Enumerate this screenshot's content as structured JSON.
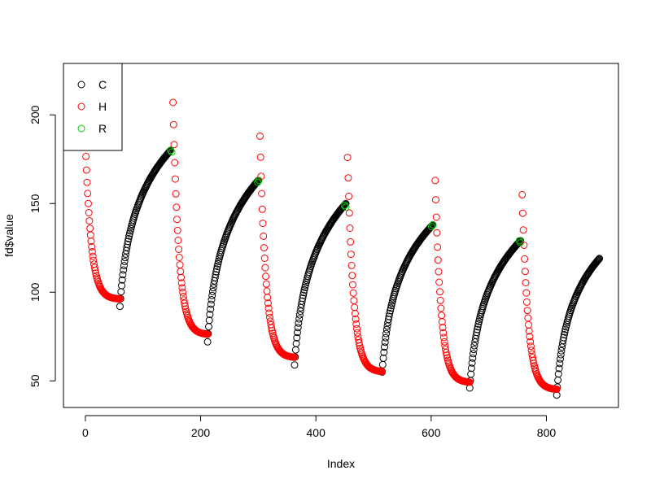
{
  "chart_data": {
    "type": "scatter",
    "title": "",
    "xlabel": "Index",
    "ylabel": "fd$value",
    "xlim": [
      -38,
      925
    ],
    "ylim": [
      35,
      229
    ],
    "xticks": [
      0,
      200,
      400,
      600,
      800
    ],
    "yticks": [
      50,
      100,
      150,
      200
    ],
    "xtick_labels": [
      "0",
      "200",
      "400",
      "600",
      "800"
    ],
    "ytick_labels": [
      "50",
      "100",
      "150",
      "200"
    ],
    "grid": false,
    "legend_position": "top-left",
    "marker": "open-circle",
    "series": [
      {
        "name": "C",
        "color": "#000000",
        "segments": [
          {
            "x0": 60,
            "x1": 148,
            "y0": 92,
            "y1": 180,
            "curve": "log"
          },
          {
            "x0": 212,
            "x1": 300,
            "y0": 72,
            "y1": 163,
            "curve": "log"
          },
          {
            "x0": 363,
            "x1": 452,
            "y0": 59,
            "y1": 150,
            "curve": "log"
          },
          {
            "x0": 515,
            "x1": 603,
            "y0": 55,
            "y1": 138,
            "curve": "log"
          },
          {
            "x0": 667,
            "x1": 755,
            "y0": 46,
            "y1": 129,
            "curve": "log"
          },
          {
            "x0": 818,
            "x1": 892,
            "y0": 42,
            "y1": 119,
            "curve": "log"
          }
        ]
      },
      {
        "name": "H",
        "color": "#ff0000",
        "segments": [
          {
            "x0": 0,
            "x1": 60,
            "y0": 185,
            "y1": 96,
            "curve": "exp"
          },
          {
            "x0": 152,
            "x1": 212,
            "y0": 207,
            "y1": 76,
            "curve": "exp"
          },
          {
            "x0": 303,
            "x1": 363,
            "y0": 188,
            "y1": 63,
            "curve": "exp"
          },
          {
            "x0": 455,
            "x1": 515,
            "y0": 176,
            "y1": 55,
            "curve": "exp"
          },
          {
            "x0": 607,
            "x1": 667,
            "y0": 163,
            "y1": 49,
            "curve": "exp"
          },
          {
            "x0": 758,
            "x1": 818,
            "y0": 155,
            "y1": 45,
            "curve": "exp"
          }
        ]
      },
      {
        "name": "R",
        "color": "#00cd00",
        "points": [
          [
            148,
            180
          ],
          [
            150,
            179
          ],
          [
            299,
            162
          ],
          [
            301,
            163
          ],
          [
            450,
            149
          ],
          [
            452,
            148
          ],
          [
            601,
            137
          ],
          [
            603,
            138
          ],
          [
            753,
            129
          ],
          [
            755,
            128
          ]
        ]
      }
    ]
  }
}
